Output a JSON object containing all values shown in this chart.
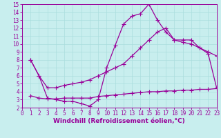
{
  "bg_color": "#c8eeee",
  "line_color": "#990099",
  "grid_color": "#aadddd",
  "xlabel": "Windchill (Refroidissement éolien,°C)",
  "xlim": [
    0,
    23
  ],
  "ylim": [
    2,
    15
  ],
  "yticks": [
    2,
    3,
    4,
    5,
    6,
    7,
    8,
    9,
    10,
    11,
    12,
    13,
    14,
    15
  ],
  "xticks": [
    0,
    1,
    2,
    3,
    4,
    5,
    6,
    7,
    8,
    9,
    10,
    11,
    12,
    13,
    14,
    15,
    16,
    17,
    18,
    19,
    20,
    21,
    22,
    23
  ],
  "line1_x": [
    1,
    2,
    3,
    4,
    5,
    6,
    7,
    8,
    9,
    10,
    11,
    12,
    13,
    14,
    15,
    16,
    17,
    18,
    19,
    20,
    21,
    22,
    23
  ],
  "line1_y": [
    8.0,
    6.0,
    4.5,
    4.5,
    4.8,
    5.0,
    5.2,
    5.5,
    6.0,
    6.5,
    7.0,
    7.5,
    8.5,
    9.5,
    10.5,
    11.5,
    12.0,
    10.5,
    10.2,
    10.0,
    9.5,
    9.0,
    8.5
  ],
  "line2_x": [
    1,
    2,
    3,
    4,
    5,
    6,
    7,
    8,
    9,
    10,
    11,
    12,
    13,
    14,
    15,
    16,
    17,
    18,
    19,
    20,
    21,
    22,
    23
  ],
  "line2_y": [
    8.0,
    6.0,
    3.2,
    3.0,
    2.8,
    2.8,
    2.5,
    2.2,
    3.0,
    7.0,
    9.8,
    12.5,
    13.5,
    13.8,
    15.0,
    13.0,
    11.5,
    10.5,
    10.5,
    10.5,
    9.5,
    8.8,
    4.5
  ],
  "line3_x": [
    1,
    2,
    3,
    4,
    5,
    6,
    7,
    8,
    9,
    10,
    11,
    12,
    13,
    14,
    15,
    16,
    17,
    18,
    19,
    20,
    21,
    22,
    23
  ],
  "line3_y": [
    3.5,
    3.2,
    3.1,
    3.1,
    3.2,
    3.2,
    3.2,
    3.2,
    3.4,
    3.5,
    3.6,
    3.7,
    3.8,
    3.9,
    4.0,
    4.0,
    4.1,
    4.1,
    4.2,
    4.2,
    4.3,
    4.3,
    4.4
  ],
  "marker": "+",
  "markersize": 4,
  "linewidth": 0.9,
  "tick_fontsize": 5.5,
  "label_fontsize": 6.5
}
